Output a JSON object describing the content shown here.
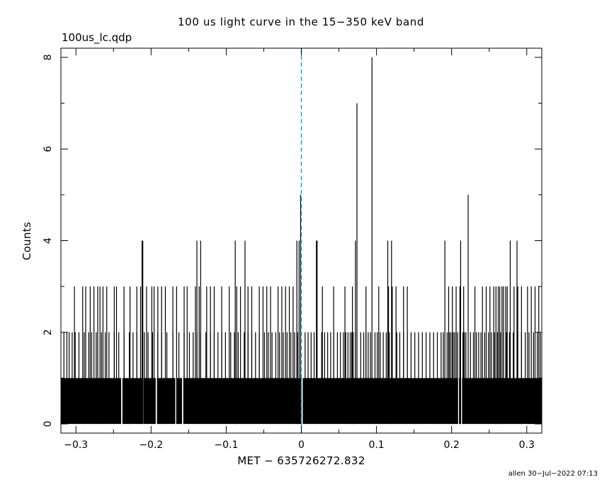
{
  "plot": {
    "title": "100 us light curve in the 15−350 keV band",
    "file_label": "100us_lc.qdp",
    "footer": "allen 30−Jul−2022 07:13"
  },
  "colors": {
    "histogram": "#000000",
    "trigger_line": "#1aa1b8"
  },
  "chart_data": {
    "type": "bar",
    "title": "100 us light curve in the 15−350 keV band",
    "xlabel": "MET − 635726272.832",
    "ylabel": "Counts",
    "xlim": [
      -0.32,
      0.32
    ],
    "ylim": [
      -0.2,
      8.2
    ],
    "bin_width_s": 0.0001,
    "x_ticks": [
      -0.3,
      -0.2,
      -0.1,
      0,
      0.1,
      0.2,
      0.3
    ],
    "x_tick_labels": [
      "−0.3",
      "−0.2",
      "−0.1",
      "0",
      "0.1",
      "0.2",
      "0.3"
    ],
    "y_ticks": [
      0,
      2,
      4,
      6,
      8
    ],
    "y_tick_labels": [
      "0",
      "2",
      "4",
      "6",
      "8"
    ],
    "baseline_counts": 1,
    "trigger_line_x": 0,
    "count_0_bins_x": [
      -0.239,
      -0.211,
      -0.193,
      -0.167,
      -0.158,
      0.001,
      0.209,
      0.213
    ],
    "count_2_bins_x": [
      -0.316,
      -0.312,
      -0.309,
      -0.305,
      -0.301,
      -0.296,
      -0.289,
      -0.283,
      -0.279,
      -0.273,
      -0.266,
      -0.261,
      -0.256,
      -0.249,
      -0.243,
      -0.236,
      -0.229,
      -0.224,
      -0.219,
      -0.209,
      -0.204,
      -0.198,
      -0.191,
      -0.186,
      -0.179,
      -0.171,
      -0.163,
      -0.156,
      -0.149,
      -0.144,
      -0.139,
      -0.134,
      -0.127,
      -0.121,
      -0.116,
      -0.111,
      -0.106,
      -0.101,
      -0.094,
      -0.089,
      -0.084,
      -0.076,
      -0.071,
      -0.066,
      -0.061,
      -0.056,
      -0.049,
      -0.044,
      -0.039,
      -0.034,
      -0.029,
      -0.024,
      -0.019,
      -0.014,
      -0.009,
      -0.005,
      0.005,
      0.009,
      0.013,
      0.017,
      0.027,
      0.031,
      0.035,
      0.039,
      0.043,
      0.048,
      0.052,
      0.056,
      0.059,
      0.062,
      0.065,
      0.067,
      0.069,
      0.072,
      0.079,
      0.083,
      0.086,
      0.089,
      0.092,
      0.098,
      0.101,
      0.105,
      0.109,
      0.113,
      0.117,
      0.121,
      0.127,
      0.131,
      0.136,
      0.141,
      0.146,
      0.151,
      0.156,
      0.161,
      0.166,
      0.171,
      0.176,
      0.181,
      0.186,
      0.189,
      0.194,
      0.197,
      0.199,
      0.202,
      0.204,
      0.206,
      0.208,
      0.211,
      0.215,
      0.217,
      0.219,
      0.225,
      0.229,
      0.233,
      0.236,
      0.239,
      0.244,
      0.249,
      0.253,
      0.257,
      0.261,
      0.265,
      0.269,
      0.273,
      0.277,
      0.282,
      0.288,
      0.293,
      0.298,
      0.303,
      0.309,
      0.314,
      0.318
    ],
    "count_3_bins_x": [
      -0.302,
      -0.291,
      -0.287,
      -0.281,
      -0.276,
      -0.271,
      -0.268,
      -0.264,
      -0.259,
      -0.249,
      -0.246,
      -0.236,
      -0.228,
      -0.219,
      -0.214,
      -0.206,
      -0.199,
      -0.196,
      -0.191,
      -0.186,
      -0.181,
      -0.171,
      -0.166,
      -0.156,
      -0.152,
      -0.141,
      -0.136,
      -0.126,
      -0.121,
      -0.116,
      -0.106,
      -0.096,
      -0.086,
      -0.081,
      -0.071,
      -0.066,
      -0.056,
      -0.051,
      -0.046,
      -0.041,
      -0.031,
      -0.026,
      -0.021,
      -0.016,
      -0.011,
      0.028,
      0.043,
      0.058,
      0.068,
      0.086,
      0.103,
      0.116,
      0.121,
      0.126,
      0.136,
      0.141,
      0.196,
      0.201,
      0.206,
      0.211,
      0.216,
      0.231,
      0.241,
      0.246,
      0.251,
      0.256,
      0.259,
      0.262,
      0.264,
      0.267,
      0.269,
      0.272,
      0.274,
      0.283,
      0.288,
      0.293,
      0.301,
      0.306,
      0.311,
      0.316
    ],
    "count_4_bins_x": [
      -0.212,
      -0.211,
      -0.139,
      -0.134,
      -0.088,
      -0.075,
      -0.006,
      -0.003,
      0.02,
      0.021,
      0.072,
      0.115,
      0.12,
      0.191,
      0.212,
      0.278,
      0.287
    ],
    "count_5_bins_x": [
      -0.001,
      0.222
    ],
    "count_7_bins_x": [
      0.074
    ],
    "count_8_bins_x": [
      0.094
    ]
  }
}
